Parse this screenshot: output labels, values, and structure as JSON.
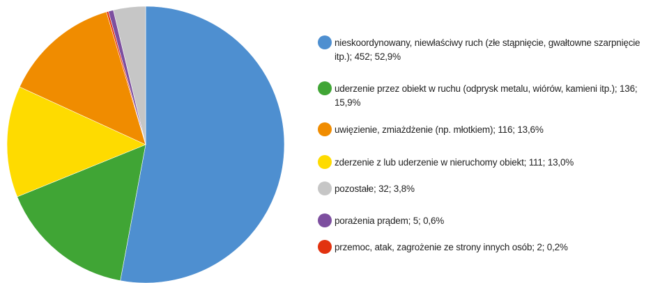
{
  "chart_data": {
    "type": "pie",
    "categories": [
      "nieskoordynowany, niewłaściwy ruch (złe stąpnięcie, gwałtowne szarpnięcie itp.); 452; 52,9%",
      "uderzenie przez obiekt w ruchu (odprysk metalu, wiórów, kamieni itp.); 136; 15,9%",
      "zderzenie z lub uderzenie w nieruchomy obiekt; 111; 13,0%",
      "uwięzienie, zmiażdżenie (np. młotkiem); 116; 13,6%",
      "przemoc, atak, zagrożenie ze strony innych osób; 2; 0,2%",
      "porażenia prądem; 5; 0,6%",
      "pozostałe; 32; 3,8%"
    ],
    "values": [
      452,
      136,
      111,
      116,
      2,
      5,
      32
    ],
    "colors": [
      "#4e8fd0",
      "#40a535",
      "#fedb00",
      "#f08c00",
      "#e2320f",
      "#7d4f9f",
      "#c6c6c6"
    ]
  }
}
